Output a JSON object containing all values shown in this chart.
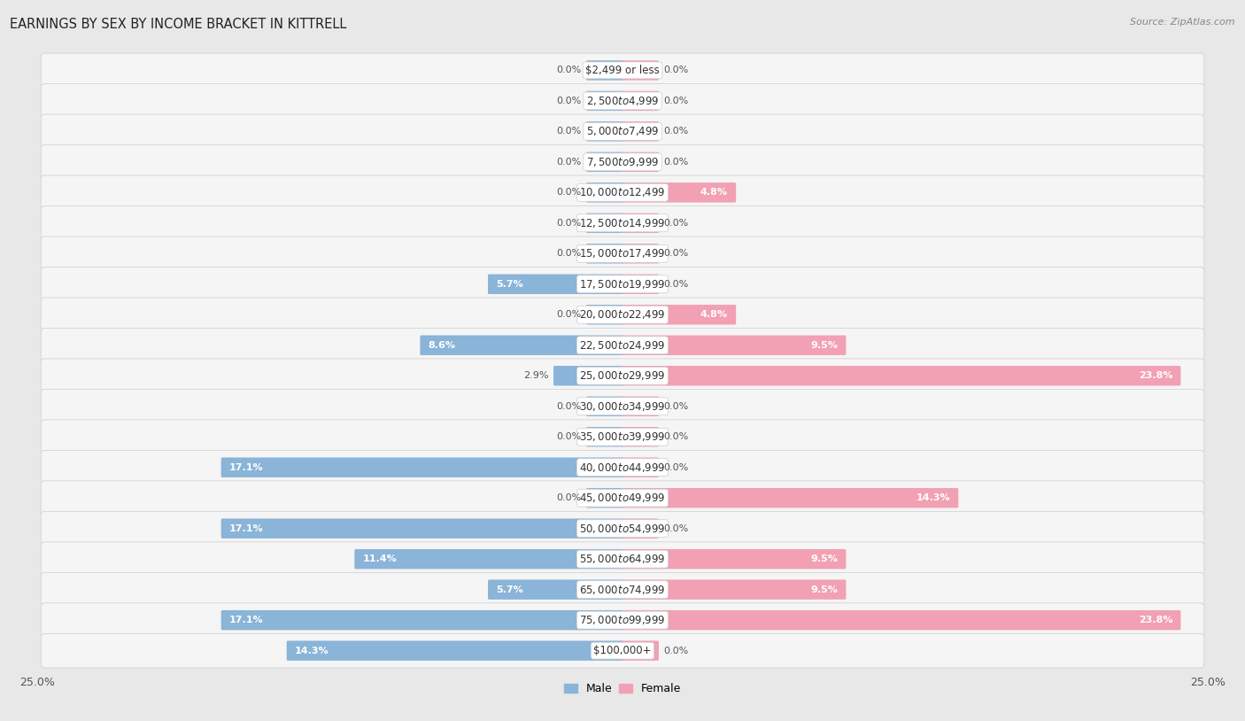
{
  "title": "EARNINGS BY SEX BY INCOME BRACKET IN KITTRELL",
  "source": "Source: ZipAtlas.com",
  "categories": [
    "$2,499 or less",
    "$2,500 to $4,999",
    "$5,000 to $7,499",
    "$7,500 to $9,999",
    "$10,000 to $12,499",
    "$12,500 to $14,999",
    "$15,000 to $17,499",
    "$17,500 to $19,999",
    "$20,000 to $22,499",
    "$22,500 to $24,999",
    "$25,000 to $29,999",
    "$30,000 to $34,999",
    "$35,000 to $39,999",
    "$40,000 to $44,999",
    "$45,000 to $49,999",
    "$50,000 to $54,999",
    "$55,000 to $64,999",
    "$65,000 to $74,999",
    "$75,000 to $99,999",
    "$100,000+"
  ],
  "male_values": [
    0.0,
    0.0,
    0.0,
    0.0,
    0.0,
    0.0,
    0.0,
    5.7,
    0.0,
    8.6,
    2.9,
    0.0,
    0.0,
    17.1,
    0.0,
    17.1,
    11.4,
    5.7,
    17.1,
    14.3
  ],
  "female_values": [
    0.0,
    0.0,
    0.0,
    0.0,
    4.8,
    0.0,
    0.0,
    0.0,
    4.8,
    9.5,
    23.8,
    0.0,
    0.0,
    0.0,
    14.3,
    0.0,
    9.5,
    9.5,
    23.8,
    0.0
  ],
  "male_color": "#8ab4d8",
  "female_color": "#f2a0b3",
  "outside_label_color": "#555555",
  "white_label_color": "#ffffff",
  "axis_limit": 25.0,
  "bg_color": "#e8e8e8",
  "row_color_light": "#f5f5f5",
  "row_color_dark": "#ececec",
  "title_fontsize": 10.5,
  "label_fontsize": 8.0,
  "tick_fontsize": 9,
  "bar_height": 0.55,
  "category_fontsize": 8.5,
  "min_bar_for_inside_label": 4.0
}
